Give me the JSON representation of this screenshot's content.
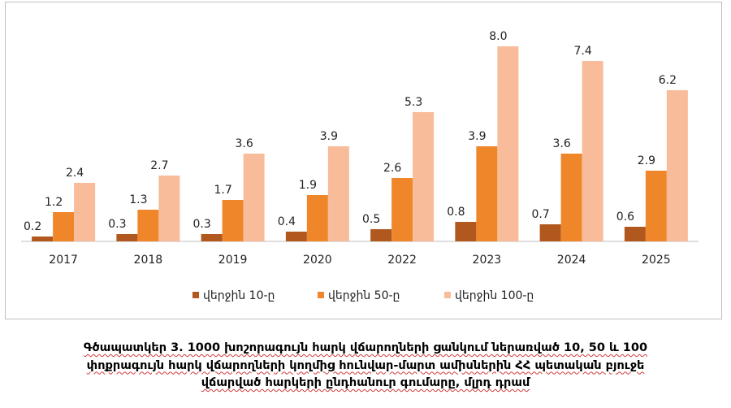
{
  "chart_data": {
    "type": "bar",
    "categories": [
      "2017",
      "2018",
      "2019",
      "2020",
      "2022",
      "2023",
      "2024",
      "2025"
    ],
    "series": [
      {
        "name": "վերջին 10-ը",
        "values": [
          0.2,
          0.3,
          0.3,
          0.4,
          0.5,
          0.8,
          0.7,
          0.6
        ],
        "labels": [
          "0.2",
          "0.3",
          "0.3",
          "0.4",
          "0.5",
          "0.8",
          "0.7",
          "0.6"
        ],
        "color": "#b0581e"
      },
      {
        "name": "վերջին 50-ը",
        "values": [
          1.2,
          1.3,
          1.7,
          1.9,
          2.6,
          3.9,
          3.6,
          2.9
        ],
        "labels": [
          "1.2",
          "1.3",
          "1.7",
          "1.9",
          "2.6",
          "3.9",
          "3.6",
          "2.9"
        ],
        "color": "#f0862a"
      },
      {
        "name": "վերջին 100-ը",
        "values": [
          2.4,
          2.7,
          3.6,
          3.9,
          5.3,
          8.0,
          7.4,
          6.2
        ],
        "labels": [
          "2.4",
          "2.7",
          "3.6",
          "3.9",
          "5.3",
          "8.0",
          "7.4",
          "6.2"
        ],
        "color": "#f8bc9a"
      }
    ],
    "ylim": [
      0,
      8.4
    ],
    "grid": false,
    "legend_position": "bottom"
  },
  "caption": {
    "line1": "Գծապատկեր 3. 1000 խոշորագույն հարկ վճարողների ցանկում ներառված 10, 50 և 100",
    "line2": "փոքրագույն հարկ վճարողների կողմից հունվար-մարտ ամիսներին ՀՀ պետական բյուջե",
    "line3": "վճարված հարկերի ընդհանուր գումարը, մլրդ դրամ"
  }
}
